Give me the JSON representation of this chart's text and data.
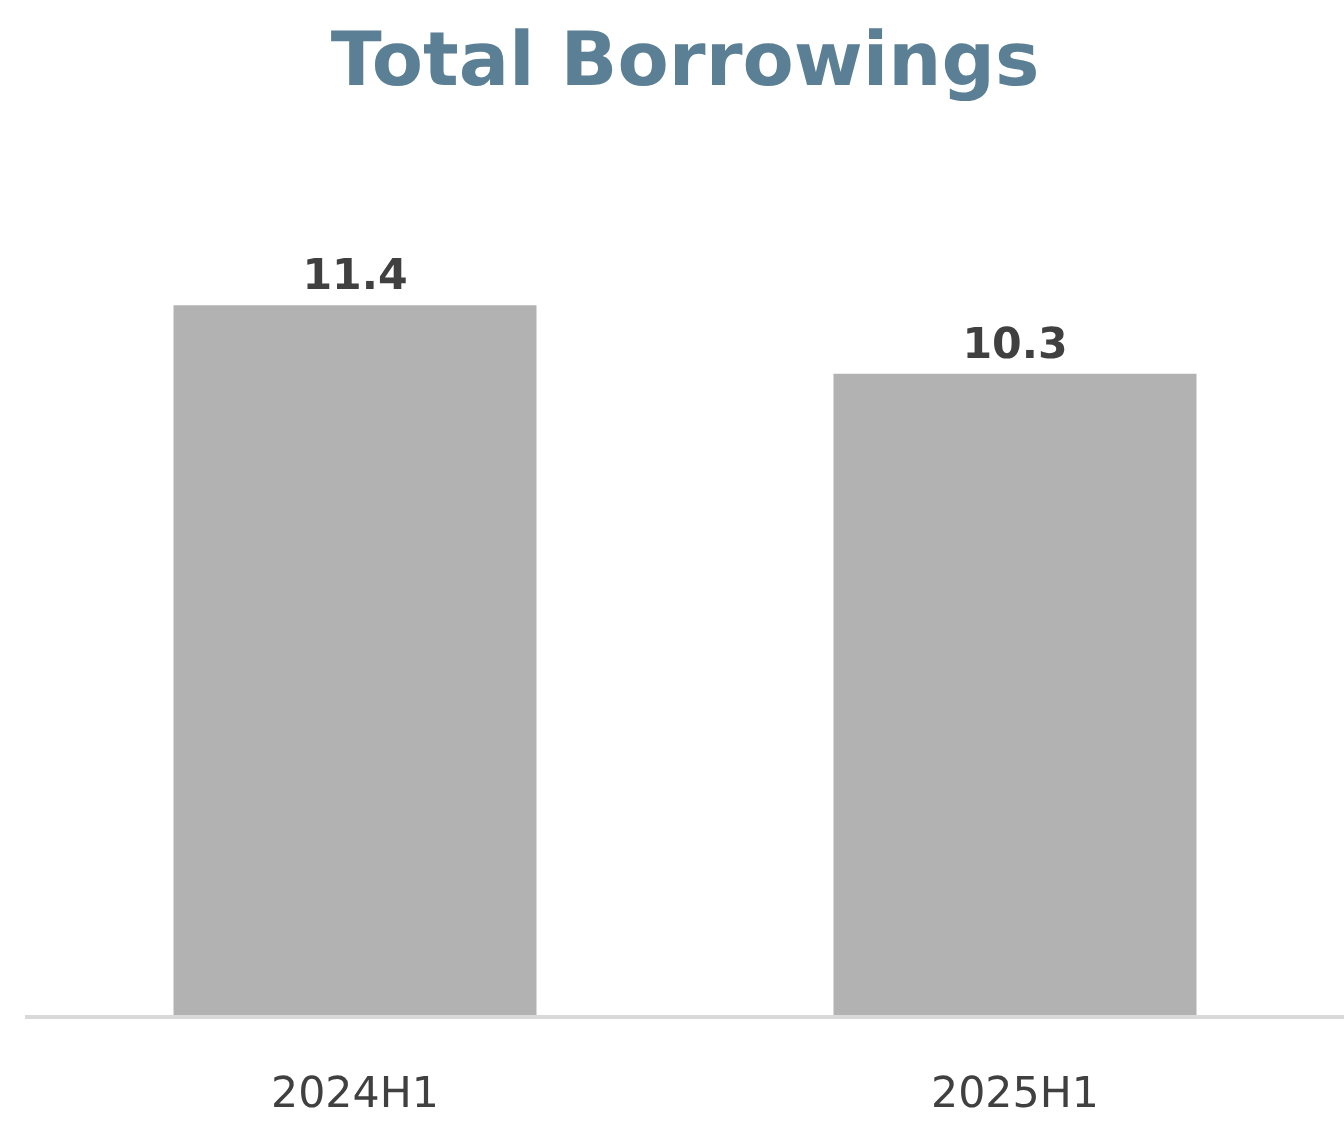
{
  "chart_data": {
    "type": "bar",
    "title": "Total Borrowings",
    "categories": [
      "2024H1",
      "2025H1"
    ],
    "values": [
      11.4,
      10.3
    ],
    "color": "#b2b2b2",
    "data_labels": true
  }
}
